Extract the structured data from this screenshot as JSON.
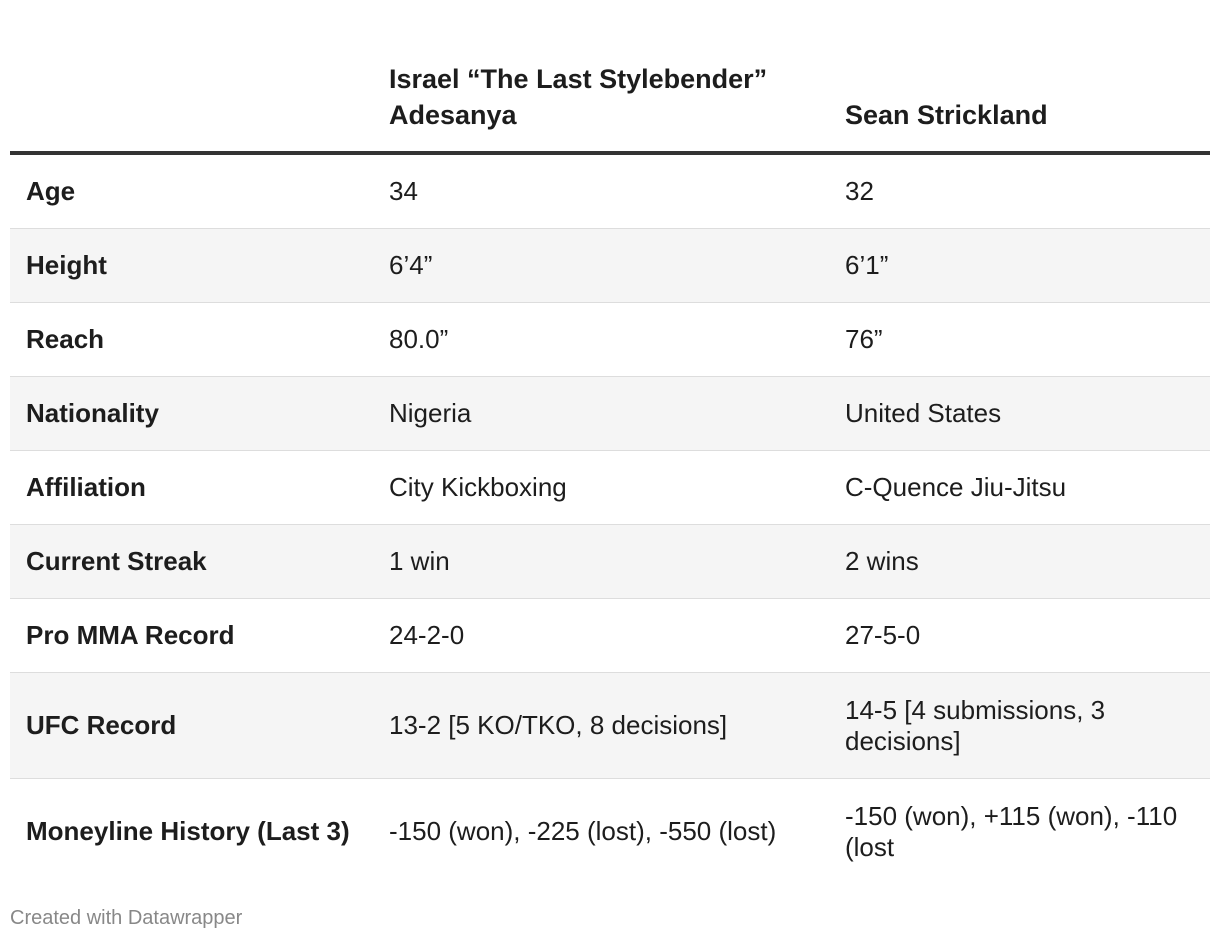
{
  "table": {
    "headers": [
      "",
      "Israel “The Last Stylebender” Adesanya",
      "Sean Strickland"
    ],
    "rows": [
      {
        "label": "Age",
        "a": "34",
        "b": "32"
      },
      {
        "label": "Height",
        "a": "6’4”",
        "b": "6’1”"
      },
      {
        "label": "Reach",
        "a": "80.0”",
        "b": "76”"
      },
      {
        "label": "Nationality",
        "a": "Nigeria",
        "b": "United States"
      },
      {
        "label": "Affiliation",
        "a": "City Kickboxing",
        "b": "C-Quence Jiu-Jitsu"
      },
      {
        "label": "Current Streak",
        "a": "1 win",
        "b": "2 wins"
      },
      {
        "label": "Pro MMA Record",
        "a": "24-2-0",
        "b": "27-5-0"
      },
      {
        "label": "UFC Record",
        "a": "13-2 [5 KO/TKO, 8 decisions]",
        "b": "14-5 [4 submissions, 3 decisions]"
      },
      {
        "label": "Moneyline History (Last 3)",
        "a": "-150 (won), -225 (lost), -550 (lost)",
        "b": "-150 (won), +115 (won), -110 (lost"
      }
    ]
  },
  "footer": {
    "credit": "Created with Datawrapper"
  }
}
